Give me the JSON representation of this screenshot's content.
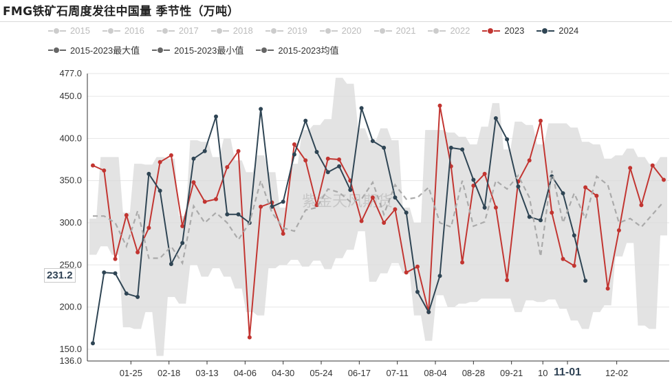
{
  "title": "FMG铁矿石周度发往中国量 季节性（万吨）",
  "watermark": "紫金天风期货",
  "hover": {
    "y_value": "231.2",
    "x_label": "11-01"
  },
  "legend": [
    {
      "label": "2015",
      "color": "#cccccc"
    },
    {
      "label": "2016",
      "color": "#cccccc"
    },
    {
      "label": "2017",
      "color": "#cccccc"
    },
    {
      "label": "2018",
      "color": "#cccccc"
    },
    {
      "label": "2019",
      "color": "#cccccc"
    },
    {
      "label": "2020",
      "color": "#cccccc"
    },
    {
      "label": "2021",
      "color": "#cccccc"
    },
    {
      "label": "2022",
      "color": "#cccccc"
    },
    {
      "label": "2023",
      "color": "#c23531"
    },
    {
      "label": "2024",
      "color": "#2f4554"
    },
    {
      "label": "2015-2023最大值",
      "color": "#666666"
    },
    {
      "label": "2015-2023最小值",
      "color": "#666666"
    },
    {
      "label": "2015-2023均值",
      "color": "#666666"
    }
  ],
  "chart_data": {
    "type": "line",
    "ylim": [
      136.0,
      477.0
    ],
    "y_ticks": [
      "136.0",
      "150.0",
      "200.0",
      "250.0",
      "300.0",
      "350.0",
      "400.0",
      "450.0",
      "477.0"
    ],
    "y_tick_values": [
      136,
      150,
      200,
      250,
      300,
      350,
      400,
      450,
      477
    ],
    "x_tick_labels": [
      "01-25",
      "02-18",
      "03-13",
      "04-06",
      "04-30",
      "05-24",
      "06-17",
      "07-11",
      "08-04",
      "08-28",
      "09-21",
      "10",
      "11-01",
      "12-02"
    ],
    "x_tick_weeks": [
      3.4,
      6.8,
      10.2,
      13.6,
      17.0,
      20.4,
      23.8,
      27.2,
      30.6,
      34.0,
      37.4,
      40.2,
      42.4,
      46.8
    ],
    "grid": true,
    "series": [
      {
        "name": "2023",
        "color": "#c23531",
        "values": [
          368,
          362,
          257,
          309,
          265,
          294,
          372,
          380,
          296,
          348,
          325,
          328,
          366,
          385,
          164,
          319,
          324,
          287,
          393,
          374,
          321,
          376,
          375,
          350,
          302,
          330,
          300,
          316,
          241,
          248,
          194,
          439,
          367,
          253,
          344,
          358,
          318,
          232,
          349,
          374,
          421,
          312,
          257,
          249,
          342,
          332,
          222,
          291,
          365,
          321,
          368,
          351
        ]
      },
      {
        "name": "2024",
        "color": "#2f4554",
        "values": [
          157,
          241,
          240,
          216,
          212,
          358,
          338,
          251,
          276,
          376,
          385,
          426,
          310,
          310,
          300,
          435,
          319,
          325,
          381,
          421,
          384,
          360,
          367,
          339,
          436,
          397,
          389,
          330,
          312,
          218,
          194,
          237,
          389,
          387,
          351,
          318,
          424,
          399,
          343,
          307,
          303,
          355,
          335,
          285,
          231.2
        ]
      },
      {
        "name": "2015-2023均值",
        "color": "#aaaaaa",
        "values": [
          308,
          308,
          300,
          272,
          314,
          258,
          258,
          272,
          252,
          320,
          300,
          312,
          300,
          280,
          300,
          350,
          312,
          294,
          290,
          315,
          318,
          340,
          336,
          325,
          328,
          348,
          310,
          345,
          328,
          330,
          342,
          300,
          295,
          350,
          296,
          301,
          350,
          340,
          356,
          330,
          260,
          362,
          300,
          335,
          305,
          355,
          345,
          300,
          305,
          295,
          310,
          325
        ]
      }
    ],
    "band_max": [
      305,
      378,
      378,
      312,
      370,
      369,
      378,
      376,
      308,
      398,
      396,
      378,
      400,
      374,
      360,
      380,
      360,
      318,
      370,
      410,
      416,
      423,
      472,
      465,
      412,
      398,
      412,
      398,
      318,
      300,
      410,
      410,
      407,
      402,
      393,
      414,
      442,
      387,
      420,
      416,
      393,
      418,
      418,
      413,
      396,
      393,
      376,
      380,
      388,
      378,
      370,
      378
    ],
    "band_min": [
      262,
      272,
      262,
      176,
      174,
      194,
      142,
      212,
      204,
      250,
      236,
      246,
      236,
      222,
      194,
      190,
      246,
      250,
      256,
      248,
      255,
      245,
      258,
      268,
      290,
      230,
      240,
      252,
      240,
      190,
      160,
      214,
      200,
      204,
      206,
      210,
      210,
      210,
      194,
      208,
      206,
      209,
      198,
      184,
      174,
      194,
      202,
      260,
      276,
      178,
      174,
      285
    ]
  }
}
